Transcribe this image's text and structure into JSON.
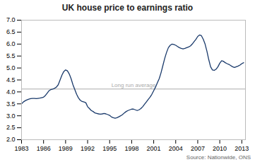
{
  "chart_data": {
    "type": "line",
    "title": "UK house price to earnings ratio",
    "caption": "Source: Nationwide, ONS",
    "color": "#1a3a6b",
    "grid": false,
    "long_run_average": {
      "value": 4.12,
      "label": "Long run average",
      "color": "#aaaaaa"
    },
    "xlim": [
      1983,
      2013.5
    ],
    "xticks": [
      1983,
      1986,
      1989,
      1992,
      1995,
      1998,
      2001,
      2004,
      2007,
      2010,
      2013
    ],
    "ylim": [
      2.0,
      7.0
    ],
    "yticks": [
      {
        "value": 2.0,
        "label": "2.0"
      },
      2.5,
      {
        "value": 3.0,
        "label": "3.0"
      },
      3.5,
      {
        "value": 4.0,
        "label": "4.0"
      },
      4.5,
      {
        "value": 5.0,
        "label": "5.0"
      },
      5.5,
      {
        "value": 6.0,
        "label": "6.0"
      },
      6.5,
      {
        "value": 7.0,
        "label": "7.0"
      }
    ],
    "x": [
      1983.0,
      1983.25,
      1983.5,
      1983.75,
      1984.0,
      1984.25,
      1984.5,
      1984.75,
      1985.0,
      1985.25,
      1985.5,
      1985.75,
      1986.0,
      1986.25,
      1986.5,
      1986.75,
      1987.0,
      1987.25,
      1987.5,
      1987.75,
      1988.0,
      1988.25,
      1988.5,
      1988.75,
      1989.0,
      1989.25,
      1989.5,
      1989.75,
      1990.0,
      1990.25,
      1990.5,
      1990.75,
      1991.0,
      1991.25,
      1991.5,
      1991.75,
      1992.0,
      1992.25,
      1992.5,
      1992.75,
      1993.0,
      1993.25,
      1993.5,
      1993.75,
      1994.0,
      1994.25,
      1994.5,
      1994.75,
      1995.0,
      1995.25,
      1995.5,
      1995.75,
      1996.0,
      1996.25,
      1996.5,
      1996.75,
      1997.0,
      1997.25,
      1997.5,
      1997.75,
      1998.0,
      1998.25,
      1998.5,
      1998.75,
      1999.0,
      1999.25,
      1999.5,
      1999.75,
      2000.0,
      2000.25,
      2000.5,
      2000.75,
      2001.0,
      2001.25,
      2001.5,
      2001.75,
      2002.0,
      2002.25,
      2002.5,
      2002.75,
      2003.0,
      2003.25,
      2003.5,
      2003.75,
      2004.0,
      2004.25,
      2004.5,
      2004.75,
      2005.0,
      2005.25,
      2005.5,
      2005.75,
      2006.0,
      2006.25,
      2006.5,
      2006.75,
      2007.0,
      2007.25,
      2007.5,
      2007.75,
      2008.0,
      2008.25,
      2008.5,
      2008.75,
      2009.0,
      2009.25,
      2009.5,
      2009.75,
      2010.0,
      2010.25,
      2010.5,
      2010.75,
      2011.0,
      2011.25,
      2011.5,
      2011.75,
      2012.0,
      2012.25,
      2012.5,
      2012.75,
      2013.0,
      2013.25
    ],
    "values": [
      3.5,
      3.58,
      3.63,
      3.67,
      3.7,
      3.72,
      3.73,
      3.73,
      3.72,
      3.73,
      3.74,
      3.76,
      3.78,
      3.85,
      3.95,
      4.05,
      4.1,
      4.12,
      4.15,
      4.2,
      4.3,
      4.5,
      4.7,
      4.85,
      4.92,
      4.88,
      4.75,
      4.55,
      4.3,
      4.1,
      3.9,
      3.75,
      3.65,
      3.6,
      3.58,
      3.55,
      3.38,
      3.3,
      3.22,
      3.18,
      3.12,
      3.1,
      3.08,
      3.07,
      3.08,
      3.1,
      3.08,
      3.05,
      3.02,
      2.95,
      2.92,
      2.9,
      2.92,
      2.96,
      3.0,
      3.05,
      3.12,
      3.18,
      3.22,
      3.25,
      3.28,
      3.28,
      3.25,
      3.22,
      3.25,
      3.3,
      3.38,
      3.48,
      3.58,
      3.68,
      3.78,
      3.9,
      4.05,
      4.2,
      4.38,
      4.55,
      4.8,
      5.1,
      5.4,
      5.65,
      5.85,
      5.95,
      6.0,
      5.98,
      5.95,
      5.9,
      5.85,
      5.82,
      5.8,
      5.82,
      5.85,
      5.88,
      5.92,
      6.0,
      6.1,
      6.2,
      6.32,
      6.38,
      6.35,
      6.2,
      6.0,
      5.7,
      5.35,
      5.05,
      4.92,
      4.9,
      4.95,
      5.05,
      5.2,
      5.3,
      5.28,
      5.22,
      5.18,
      5.15,
      5.1,
      5.05,
      5.02,
      5.05,
      5.08,
      5.12,
      5.18,
      5.22
    ]
  }
}
